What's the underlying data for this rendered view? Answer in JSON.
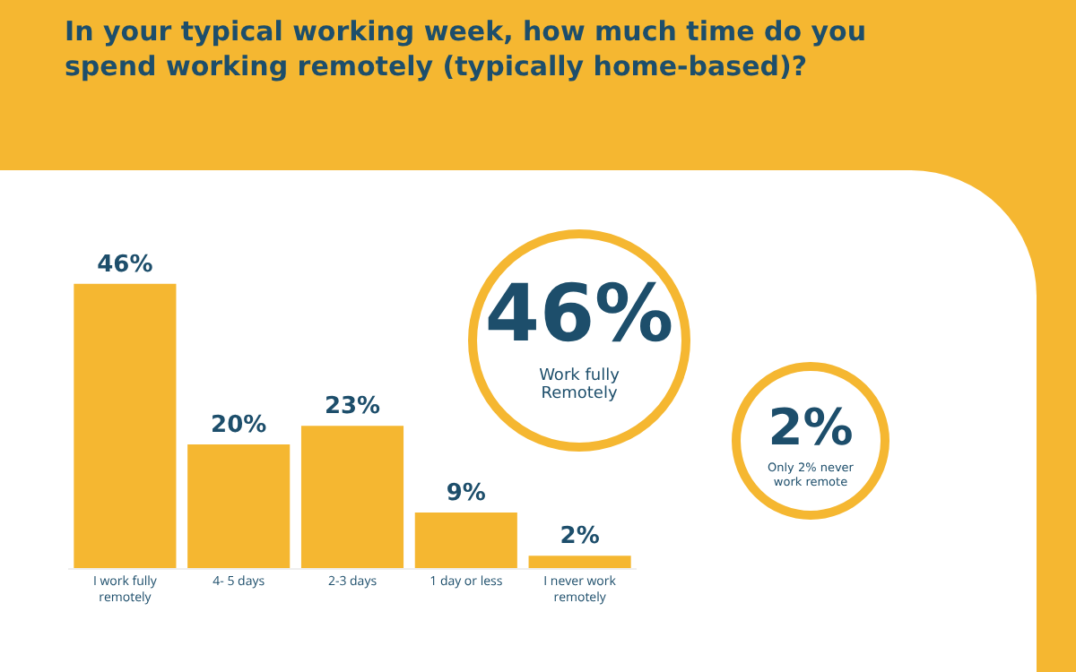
{
  "chart_data": {
    "type": "bar",
    "title": "In your typical working week, how much time do you spend working remotely (typically home-based)?",
    "categories": [
      "I work fully remotely",
      "4- 5 days",
      "2-3 days",
      "1 day or less",
      "I never work remotely"
    ],
    "values": [
      46,
      20,
      23,
      9,
      2
    ],
    "value_labels": [
      "46%",
      "20%",
      "23%",
      "9%",
      "2%"
    ],
    "color": "#f5b731",
    "grid": false,
    "annotations": [
      "46%",
      "Work fully Remotely",
      "2%",
      "Only 2% never work remote"
    ]
  }
}
